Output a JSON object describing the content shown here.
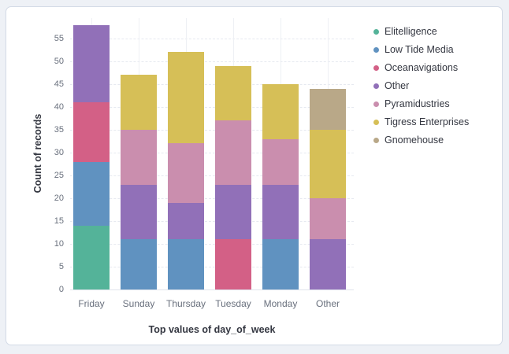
{
  "page": {
    "background_color": "#eef1f6",
    "card_background": "#ffffff",
    "card_border_color": "#d3dae6"
  },
  "chart_data": {
    "type": "bar",
    "stacked": true,
    "xlabel": "Top values of day_of_week",
    "ylabel": "Count of records",
    "categories": [
      "Friday",
      "Sunday",
      "Thursday",
      "Tuesday",
      "Monday",
      "Other"
    ],
    "series": [
      {
        "name": "Elitelligence",
        "color": "#54b399",
        "values": [
          14,
          0,
          0,
          0,
          0,
          0
        ]
      },
      {
        "name": "Low Tide Media",
        "color": "#6092c0",
        "values": [
          14,
          11,
          11,
          0,
          11,
          0
        ]
      },
      {
        "name": "Oceanavigations",
        "color": "#d36086",
        "values": [
          13,
          0,
          0,
          11,
          0,
          0
        ]
      },
      {
        "name": "Other",
        "color": "#9170b8",
        "values": [
          17,
          12,
          8,
          12,
          12,
          11
        ]
      },
      {
        "name": "Pyramidustries",
        "color": "#ca8eae",
        "values": [
          0,
          12,
          13,
          14,
          10,
          9
        ]
      },
      {
        "name": "Tigress Enterprises",
        "color": "#d6bf57",
        "values": [
          0,
          12,
          20,
          12,
          12,
          15
        ]
      },
      {
        "name": "Gnomehouse",
        "color": "#b9a888",
        "values": [
          0,
          0,
          0,
          0,
          0,
          9
        ]
      }
    ],
    "totals": [
      58,
      47,
      52,
      49,
      45,
      44
    ],
    "ylim": [
      0,
      55
    ],
    "ytick_step": 5,
    "yticks": [
      0,
      5,
      10,
      15,
      20,
      25,
      30,
      35,
      40,
      45,
      50,
      55
    ],
    "grid": true,
    "legend_position": "right"
  },
  "legend": {
    "items": [
      {
        "label": "Elitelligence",
        "color": "#54b399"
      },
      {
        "label": "Low Tide Media",
        "color": "#6092c0"
      },
      {
        "label": "Oceanavigations",
        "color": "#d36086"
      },
      {
        "label": "Other",
        "color": "#9170b8"
      },
      {
        "label": "Pyramidustries",
        "color": "#ca8eae"
      },
      {
        "label": "Tigress Enterprises",
        "color": "#d6bf57"
      },
      {
        "label": "Gnomehouse",
        "color": "#b9a888"
      }
    ]
  }
}
